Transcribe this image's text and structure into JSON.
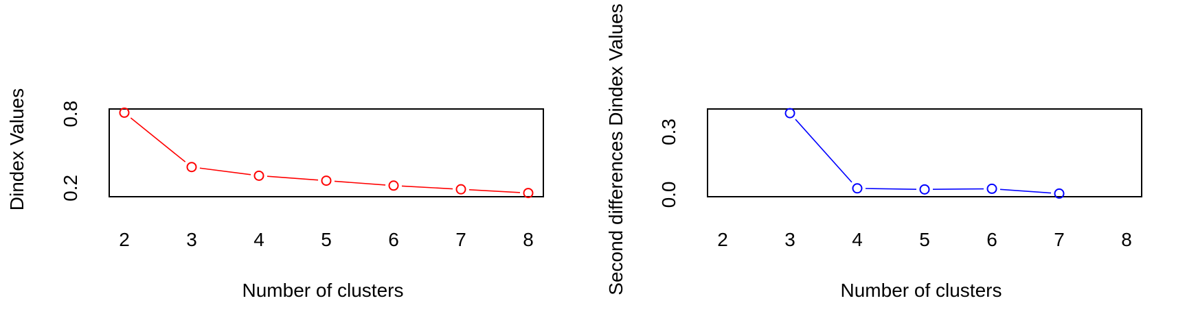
{
  "chart_data": [
    {
      "type": "line",
      "title": "",
      "xlabel": "Number of clusters",
      "ylabel": "Dindex Values",
      "x_ticks": [
        "2",
        "3",
        "4",
        "5",
        "6",
        "7",
        "8"
      ],
      "y_ticks": [
        "0.2",
        "0.8"
      ],
      "xlim": [
        2,
        8
      ],
      "ylim": [
        0.13,
        0.84
      ],
      "grid": false,
      "legend": "none",
      "series": [
        {
          "color": "#ff0000",
          "marker": "open-circle",
          "x": [
            2,
            3,
            4,
            5,
            6,
            7,
            8
          ],
          "y": [
            0.81,
            0.37,
            0.3,
            0.26,
            0.22,
            0.19,
            0.16
          ]
        }
      ]
    },
    {
      "type": "line",
      "title": "",
      "xlabel": "Number of clusters",
      "ylabel": "Second differences Dindex Values",
      "x_ticks": [
        "2",
        "3",
        "4",
        "5",
        "6",
        "7",
        "8"
      ],
      "y_ticks": [
        "0.0",
        "0.3"
      ],
      "xlim": [
        2,
        8
      ],
      "ylim": [
        -0.01,
        0.41
      ],
      "grid": false,
      "legend": "none",
      "series": [
        {
          "color": "#0000ff",
          "marker": "open-circle",
          "x": [
            3,
            4,
            5,
            6,
            7
          ],
          "y": [
            0.39,
            0.03,
            0.025,
            0.028,
            0.005
          ]
        }
      ]
    }
  ]
}
